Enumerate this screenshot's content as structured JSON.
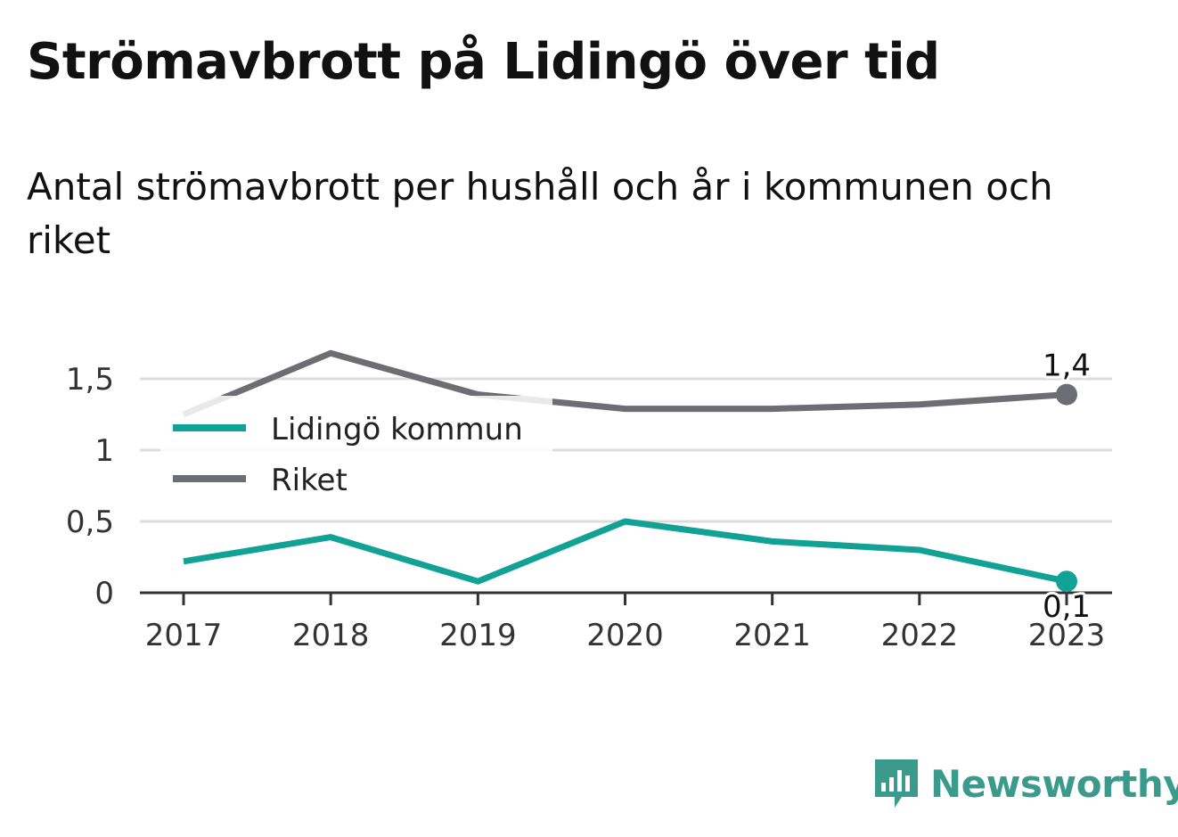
{
  "header": {
    "title": "Strömavbrott på Lidingö över tid",
    "subtitle": "Antal strömavbrott per hushåll och år i kommunen och riket"
  },
  "brand": {
    "name": "Newsworthy",
    "icon": "bar-chart-speech-bubble-icon",
    "color": "#3a9a8c"
  },
  "chart_data": {
    "type": "line",
    "title": "Strömavbrott på Lidingö över tid",
    "subtitle": "Antal strömavbrott per hushåll och år i kommunen och riket",
    "x": [
      "2017",
      "2018",
      "2019",
      "2020",
      "2021",
      "2022",
      "2023"
    ],
    "y_ticks": [
      {
        "value": 0,
        "label": "0"
      },
      {
        "value": 0.5,
        "label": "0,5"
      },
      {
        "value": 1,
        "label": "1"
      },
      {
        "value": 1.5,
        "label": "1,5"
      }
    ],
    "ylim": [
      0,
      1.5
    ],
    "grid": true,
    "legend_position": "top-left",
    "series": [
      {
        "name": "Lidingö kommun",
        "color": "#11a195",
        "values": [
          0.22,
          0.39,
          0.08,
          0.5,
          0.36,
          0.3,
          0.08
        ],
        "end_label": "0,1"
      },
      {
        "name": "Riket",
        "color": "#6d6d74",
        "values": [
          1.25,
          1.68,
          1.39,
          1.29,
          1.29,
          1.32,
          1.39
        ],
        "end_label": "1,4"
      }
    ]
  }
}
